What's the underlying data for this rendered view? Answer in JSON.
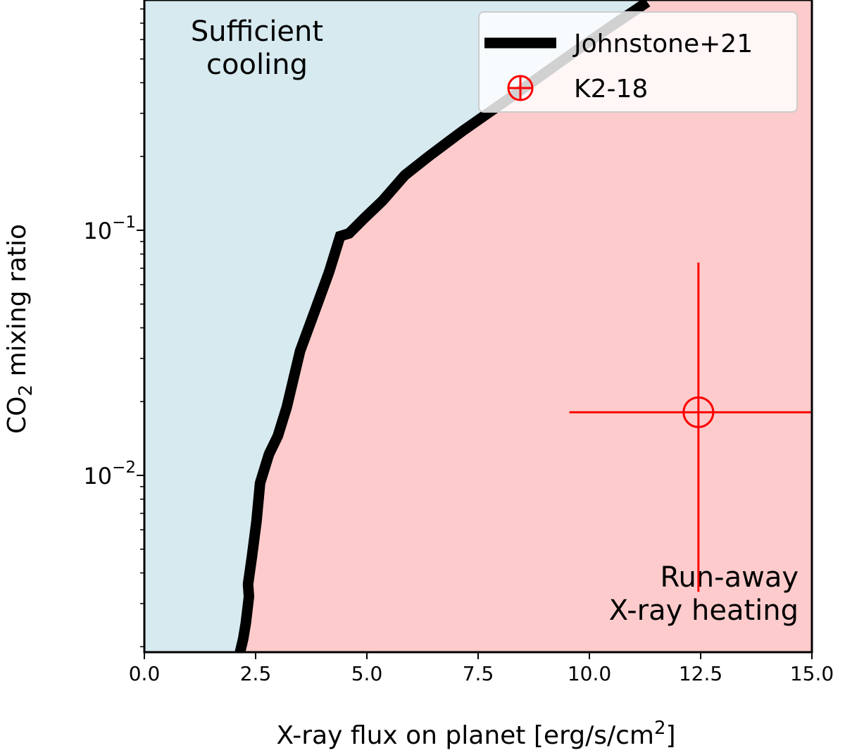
{
  "chart_data": {
    "type": "line",
    "xlabel": "X-ray flux on planet [erg/s/cm",
    "xlabel_sup": "2",
    "xlabel_end": "]",
    "ylabel_main": "CO",
    "ylabel_sub": "2",
    "ylabel_end": " mixing ratio",
    "xlim": [
      0,
      15
    ],
    "ylim": [
      0.0019,
      0.87
    ],
    "yscale": "log",
    "x_ticks": [
      0,
      2.5,
      5,
      7.5,
      10,
      12.5,
      15
    ],
    "x_tick_labels": [
      "0.0",
      "2.5",
      "5.0",
      "7.5",
      "10.0",
      "12.5",
      "15.0"
    ],
    "y_major_ticks": [
      0.01,
      0.1
    ],
    "y_tick_labels": [
      {
        "base": "10",
        "exp": "−2"
      },
      {
        "base": "10",
        "exp": "−1"
      }
    ],
    "grid": false,
    "legend_position": "top-right",
    "regions": [
      {
        "label_lines": [
          "Sufficient",
          "cooling"
        ],
        "color": "#d6eaf0",
        "side": "left",
        "text_position": "top-left"
      },
      {
        "label_lines": [
          "Run-away",
          "X-ray heating"
        ],
        "color": "#fdcbcb",
        "side": "right",
        "text_position": "bottom-right"
      }
    ],
    "series": [
      {
        "name": "Johnstone+21",
        "color": "#000000",
        "x": [
          2.15,
          2.22,
          2.28,
          2.35,
          2.33,
          2.42,
          2.52,
          2.6,
          2.8,
          3.0,
          3.2,
          3.5,
          3.85,
          4.15,
          4.4,
          4.6,
          4.95,
          5.35,
          5.85,
          6.4,
          7.15,
          8.3,
          9.8,
          10.4,
          11.3
        ],
        "y": [
          0.0019,
          0.00215,
          0.0025,
          0.0032,
          0.0036,
          0.0047,
          0.0065,
          0.0093,
          0.0122,
          0.0145,
          0.019,
          0.0322,
          0.0479,
          0.0675,
          0.0946,
          0.0971,
          0.1124,
          0.1318,
          0.1675,
          0.2009,
          0.2541,
          0.3559,
          0.5561,
          0.6625,
          0.8535
        ]
      }
    ],
    "points": [
      {
        "name": "K2-18",
        "color": "#ff0000",
        "x": 12.45,
        "y": 0.0181,
        "x_err": [
          9.55,
          15.0
        ],
        "y_err": [
          0.00335,
          0.0738
        ]
      }
    ]
  }
}
